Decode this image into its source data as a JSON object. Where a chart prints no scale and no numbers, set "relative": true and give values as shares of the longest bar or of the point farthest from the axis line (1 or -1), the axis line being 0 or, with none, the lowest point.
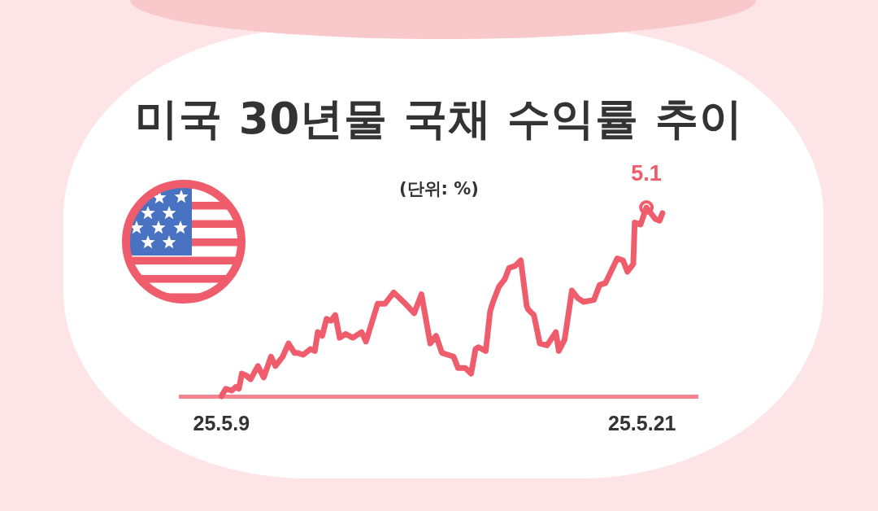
{
  "chart_data": {
    "type": "line",
    "title": "미국 30년물 국채 수익률 추이",
    "subtitle": "(단위: %)",
    "relative": true,
    "xlim": [
      "--05-07T20:00",
      "--05-22T14:00"
    ],
    "xticks": [
      {
        "value": "--05-09",
        "label": "25.5.9"
      },
      {
        "value": "--05-21",
        "label": "25.5.21"
      }
    ],
    "grid": false,
    "series": [
      {
        "color": "#ef5d6c",
        "x": [
          "--05-09T00:00",
          "--05-09T03:00",
          "--05-09T07:00",
          "--05-09T10:00",
          "--05-09T12:00",
          "--05-09T14:00",
          "--05-09T17:00",
          "--05-09T20:00",
          "--05-10T01:00",
          "--05-10T05:00",
          "--05-10T10:00",
          "--05-10T13:00",
          "--05-10T16:00",
          "--05-10T18:00",
          "--05-10T22:00",
          "--05-11T02:00",
          "--05-11T04:00",
          "--05-11T08:00",
          "--05-11T13:00",
          "--05-11T16:00",
          "--05-11T18:00",
          "--05-11T21:00",
          "--05-12T00:00",
          "--05-12T03:00",
          "--05-12T06:00",
          "--05-12T09:00",
          "--05-12T13:00",
          "--05-12T18:00",
          "--05-13T00:00",
          "--05-13T03:00",
          "--05-13T11:00",
          "--05-13T16:00",
          "--05-13T22:00",
          "--05-14T06:00",
          "--05-14T12:00",
          "--05-14T17:00",
          "--05-14T23:00",
          "--05-15T03:00",
          "--05-15T07:00",
          "--05-15T11:00",
          "--05-15T15:00",
          "--05-15T18:00",
          "--05-15T23:00",
          "--05-16T03:00",
          "--05-16T06:00",
          "--05-16T08:00",
          "--05-16T13:00",
          "--05-16T16:00",
          "--05-16T18:00",
          "--05-16T22:00",
          "--05-17T02:00",
          "--05-17T05:00",
          "--05-17T09:00",
          "--05-17T13:00",
          "--05-17T17:00",
          "--05-17T18:00",
          "--05-17T22:00",
          "--05-18T02:00",
          "--05-18T07:00",
          "--05-18T13:00",
          "--05-18T15:00",
          "--05-18T19:00",
          "--05-19T00:00",
          "--05-19T04:00",
          "--05-19T08:00",
          "--05-19T15:00",
          "--05-19T19:00",
          "--05-19T23:00",
          "--05-20T07:00",
          "--05-20T11:00",
          "--05-20T14:00",
          "--05-20T18:00",
          "--05-20T19:00",
          "--05-20T23:00",
          "--05-21T03:00",
          "--05-21T09:00",
          "--05-21T12:00",
          "--05-21T14:00"
        ],
        "values": [
          0,
          0.04,
          0.03,
          0.05,
          0.04,
          0.12,
          0.11,
          0.09,
          0.16,
          0.1,
          0.21,
          0.16,
          0.19,
          0.21,
          0.28,
          0.23,
          0.23,
          0.22,
          0.25,
          0.24,
          0.34,
          0.32,
          0.41,
          0.4,
          0.43,
          0.31,
          0.33,
          0.31,
          0.34,
          0.29,
          0.49,
          0.49,
          0.55,
          0.49,
          0.44,
          0.54,
          0.28,
          0.32,
          0.23,
          0.22,
          0.21,
          0.15,
          0.15,
          0.12,
          0.25,
          0.26,
          0.24,
          0.45,
          0.5,
          0.58,
          0.62,
          0.68,
          0.69,
          0.72,
          0.48,
          0.46,
          0.43,
          0.28,
          0.27,
          0.34,
          0.24,
          0.3,
          0.56,
          0.52,
          0.5,
          0.51,
          0.59,
          0.6,
          0.73,
          0.72,
          0.66,
          0.7,
          0.92,
          0.91,
          1,
          0.94,
          0.93,
          0.97
        ]
      },
      {
        "type": "scatter",
        "color": "#ef5d6c",
        "marker": "circle",
        "x": [
          "--05-21T03:00"
        ],
        "values": [
          1
        ]
      }
    ],
    "annotations": [
      {
        "text": "5.1",
        "x": "--05-21T03:00",
        "y": 1
      }
    ]
  }
}
